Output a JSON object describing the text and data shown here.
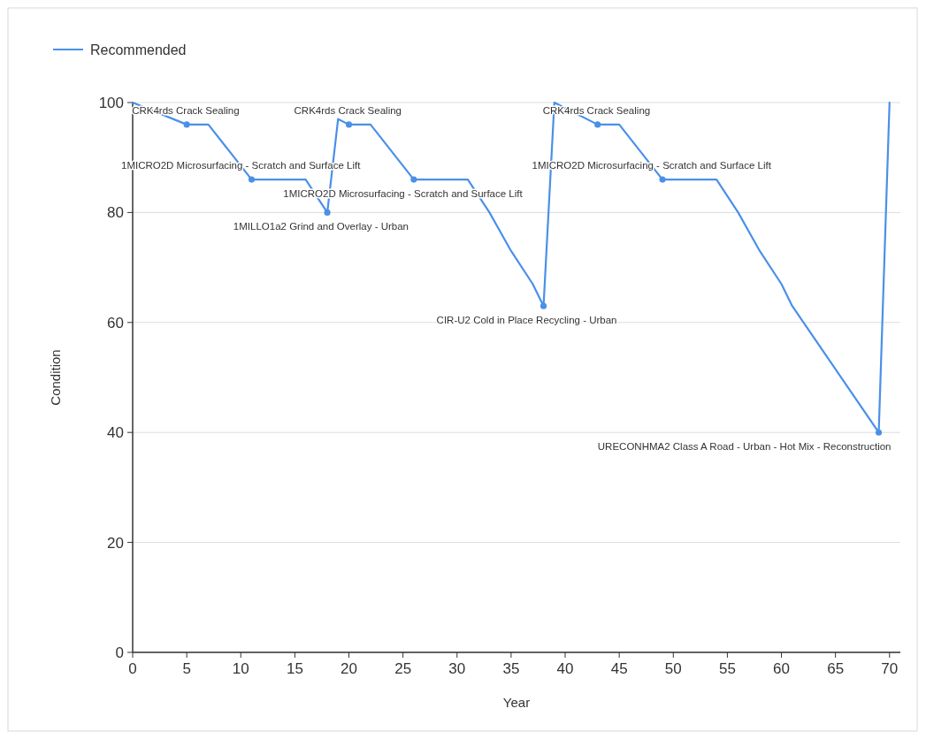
{
  "chart_data": {
    "type": "line",
    "xlabel": "Year",
    "ylabel": "Condition",
    "xlim": [
      0,
      71
    ],
    "ylim": [
      0,
      100
    ],
    "xticks": [
      0,
      5,
      10,
      15,
      20,
      25,
      30,
      35,
      40,
      45,
      50,
      55,
      60,
      65,
      70
    ],
    "yticks": [
      0,
      20,
      40,
      60,
      80,
      100
    ],
    "grid": "y",
    "legend": "top left",
    "line_style": "solid",
    "series": [
      {
        "name": "Recommended",
        "color": "#4a90e8",
        "x": [
          0,
          5,
          7,
          11,
          16,
          18,
          19,
          20,
          22,
          26,
          31,
          33,
          35,
          37,
          38,
          39,
          43,
          45,
          49,
          54,
          56,
          58,
          60,
          61,
          69,
          70
        ],
        "values": [
          100,
          96,
          96,
          86,
          86,
          80,
          97,
          96,
          96,
          86,
          86,
          80,
          73,
          67,
          63,
          100,
          96,
          96,
          86,
          86,
          80,
          73,
          67,
          63,
          40,
          100
        ]
      },
      {
        "type": "scatter",
        "marker": "circle",
        "color": "#4a90e8",
        "x": [
          5,
          11,
          18,
          20,
          26,
          38,
          43,
          49,
          69
        ],
        "values": [
          96,
          86,
          80,
          96,
          86,
          63,
          96,
          86,
          40
        ]
      }
    ],
    "annotations": [
      {
        "text": "CRK4rds Crack Sealing",
        "x": 5,
        "y": 96
      },
      {
        "text": "1MICRO2D Microsurfacing - Scratch and Surface Lift",
        "x": 11,
        "y": 86
      },
      {
        "text": "1MILLO1a2  Grind and Overlay - Urban",
        "x": 18,
        "y": 80
      },
      {
        "text": "CRK4rds Crack Sealing",
        "x": 20,
        "y": 96
      },
      {
        "text": "1MICRO2D Microsurfacing - Scratch and Surface Lift",
        "x": 26,
        "y": 86
      },
      {
        "text": "CIR-U2    Cold in Place Recycling - Urban",
        "x": 38,
        "y": 63
      },
      {
        "text": "CRK4rds Crack Sealing",
        "x": 43,
        "y": 96
      },
      {
        "text": "1MICRO2D Microsurfacing - Scratch and Surface Lift",
        "x": 49,
        "y": 86
      },
      {
        "text": "URECONHMA2 Class A Road - Urban - Hot Mix - Reconstruction",
        "x": 69,
        "y": 40
      }
    ]
  }
}
